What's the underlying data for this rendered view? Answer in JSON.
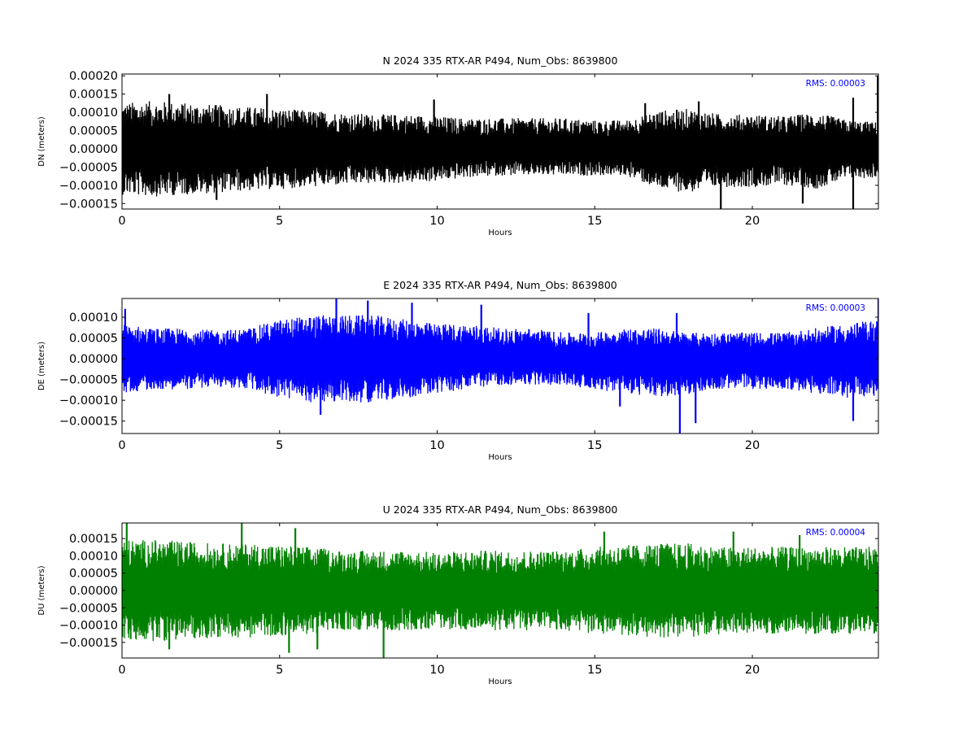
{
  "chart_data": [
    {
      "type": "line",
      "component": "N",
      "title": "N 2024 335 RTX-AR  P494, Num_Obs: 8639800",
      "xlabel": "Hours",
      "ylabel": "DN (meters)",
      "xlim": [
        0,
        24
      ],
      "ylim": [
        -0.000165,
        0.000205
      ],
      "xticks": [
        0,
        5,
        10,
        15,
        20
      ],
      "xtick_labels": [
        "0",
        "5",
        "10",
        "15",
        "20"
      ],
      "yticks": [
        -0.00015,
        -0.0001,
        -5e-05,
        0,
        5e-05,
        0.0001,
        0.00015,
        0.0002
      ],
      "ytick_labels": [
        "−0.00015",
        "−0.00010",
        "−0.00005",
        "0.00000",
        "0.00005",
        "0.00010",
        "0.00015",
        "0.00020"
      ],
      "rms_label": "RMS:  0.00003",
      "color": "#000000",
      "grid": false,
      "envelope": {
        "hours": [
          0,
          1,
          2,
          3,
          4,
          5,
          6,
          7,
          8,
          9,
          10,
          11,
          12,
          13,
          14,
          15,
          16,
          17,
          18,
          19,
          20,
          21,
          22,
          23,
          24
        ],
        "upper": [
          0.00012,
          0.000125,
          0.00012,
          0.000115,
          0.00011,
          0.000105,
          0.0001,
          9.5e-05,
          9e-05,
          9e-05,
          8.5e-05,
          8e-05,
          8e-05,
          8e-05,
          8e-05,
          7.5e-05,
          7.5e-05,
          0.0001,
          0.000105,
          9e-05,
          9e-05,
          8.5e-05,
          9.5e-05,
          7.5e-05,
          7e-05
        ],
        "lower": [
          -0.00012,
          -0.000125,
          -0.00012,
          -0.000115,
          -0.00011,
          -0.000105,
          -0.0001,
          -9.5e-05,
          -9e-05,
          -9e-05,
          -8.5e-05,
          -7.5e-05,
          -7e-05,
          -7e-05,
          -7e-05,
          -7e-05,
          -7e-05,
          -0.000105,
          -0.000115,
          -0.0001,
          -0.0001,
          -9.5e-05,
          -0.000105,
          -8e-05,
          -7.5e-05
        ]
      },
      "spikes": [
        {
          "x": 1.5,
          "y": 0.00015
        },
        {
          "x": 3.0,
          "y": -0.00014
        },
        {
          "x": 4.6,
          "y": 0.00015
        },
        {
          "x": 9.9,
          "y": 0.000135
        },
        {
          "x": 16.6,
          "y": 0.000125
        },
        {
          "x": 18.3,
          "y": 0.00013
        },
        {
          "x": 19.0,
          "y": -0.00017
        },
        {
          "x": 21.6,
          "y": -0.00015
        },
        {
          "x": 23.2,
          "y": 0.00014
        },
        {
          "x": 23.2,
          "y": -0.00017
        },
        {
          "x": 23.98,
          "y": 0.0002
        }
      ]
    },
    {
      "type": "line",
      "component": "E",
      "title": "E 2024 335 RTX-AR  P494, Num_Obs: 8639800",
      "xlabel": "Hours",
      "ylabel": "DE (meters)",
      "xlim": [
        0,
        24
      ],
      "ylim": [
        -0.00018,
        0.000145
      ],
      "xticks": [
        0,
        5,
        10,
        15,
        20
      ],
      "xtick_labels": [
        "0",
        "5",
        "10",
        "15",
        "20"
      ],
      "yticks": [
        -0.00015,
        -0.0001,
        -5e-05,
        0,
        5e-05,
        0.0001
      ],
      "ytick_labels": [
        "−0.00015",
        "−0.00010",
        "−0.00005",
        "0.00000",
        "0.00005",
        "0.00010"
      ],
      "rms_label": "RMS:  0.00003",
      "color": "#0000ff",
      "grid": false,
      "envelope": {
        "hours": [
          0,
          1,
          2,
          3,
          4,
          5,
          6,
          7,
          8,
          9,
          10,
          11,
          12,
          13,
          14,
          15,
          16,
          17,
          18,
          19,
          20,
          21,
          22,
          23,
          24
        ],
        "upper": [
          8e-05,
          7e-05,
          7e-05,
          6.5e-05,
          7e-05,
          9e-05,
          0.0001,
          0.0001,
          0.0001,
          9e-05,
          8e-05,
          8e-05,
          7e-05,
          7e-05,
          6e-05,
          6e-05,
          7e-05,
          7e-05,
          6e-05,
          6e-05,
          6e-05,
          6e-05,
          7e-05,
          8e-05,
          9e-05
        ],
        "lower": [
          -8e-05,
          -7e-05,
          -7e-05,
          -6.5e-05,
          -7e-05,
          -9e-05,
          -0.0001,
          -0.0001,
          -0.0001,
          -9e-05,
          -8e-05,
          -7e-05,
          -6e-05,
          -6e-05,
          -6e-05,
          -7e-05,
          -8e-05,
          -9e-05,
          -8e-05,
          -7e-05,
          -7e-05,
          -7e-05,
          -8e-05,
          -9e-05,
          -9e-05
        ]
      },
      "spikes": [
        {
          "x": 0.1,
          "y": 0.00012
        },
        {
          "x": 6.3,
          "y": -0.000135
        },
        {
          "x": 6.8,
          "y": 0.000145
        },
        {
          "x": 7.8,
          "y": 0.00014
        },
        {
          "x": 9.2,
          "y": 0.000135
        },
        {
          "x": 11.4,
          "y": 0.00013
        },
        {
          "x": 14.8,
          "y": 0.00011
        },
        {
          "x": 15.8,
          "y": -0.000115
        },
        {
          "x": 17.6,
          "y": 0.00011
        },
        {
          "x": 17.7,
          "y": -0.00018
        },
        {
          "x": 18.2,
          "y": -0.000155
        },
        {
          "x": 23.2,
          "y": -0.00015
        },
        {
          "x": 24.0,
          "y": 0.000145
        }
      ]
    },
    {
      "type": "line",
      "component": "U",
      "title": "U 2024 335 RTX-AR  P494, Num_Obs: 8639800",
      "xlabel": "Hours",
      "ylabel": "DU (meters)",
      "xlim": [
        0,
        24
      ],
      "ylim": [
        -0.000195,
        0.000195
      ],
      "xticks": [
        0,
        5,
        10,
        15,
        20
      ],
      "xtick_labels": [
        "0",
        "5",
        "10",
        "15",
        "20"
      ],
      "yticks": [
        -0.00015,
        -0.0001,
        -5e-05,
        0,
        5e-05,
        0.0001,
        0.00015
      ],
      "ytick_labels": [
        "−0.00015",
        "−0.00010",
        "−0.00005",
        "0.00000",
        "0.00005",
        "0.00010",
        "0.00015"
      ],
      "rms_label": "RMS:  0.00004",
      "color": "#008000",
      "grid": false,
      "envelope": {
        "hours": [
          0,
          1,
          2,
          3,
          4,
          5,
          6,
          7,
          8,
          9,
          10,
          11,
          12,
          13,
          14,
          15,
          16,
          17,
          18,
          19,
          20,
          21,
          22,
          23,
          24
        ],
        "upper": [
          0.00014,
          0.00014,
          0.000135,
          0.00013,
          0.00013,
          0.000125,
          0.00012,
          0.00011,
          0.00011,
          0.00011,
          0.000105,
          0.00011,
          0.00011,
          0.00011,
          0.00011,
          0.00012,
          0.000125,
          0.00013,
          0.00013,
          0.00012,
          0.00012,
          0.00012,
          0.00012,
          0.00012,
          0.00012
        ],
        "lower": [
          -0.00014,
          -0.00014,
          -0.000135,
          -0.00013,
          -0.00013,
          -0.000125,
          -0.00012,
          -0.00011,
          -0.00011,
          -0.00011,
          -0.000105,
          -0.00011,
          -0.00011,
          -0.00011,
          -0.00011,
          -0.00012,
          -0.000125,
          -0.00013,
          -0.00013,
          -0.00012,
          -0.00012,
          -0.00012,
          -0.00012,
          -0.00012,
          -0.00012
        ]
      },
      "spikes": [
        {
          "x": 0.15,
          "y": 0.000195
        },
        {
          "x": 1.5,
          "y": -0.00017
        },
        {
          "x": 3.8,
          "y": 0.000195
        },
        {
          "x": 5.5,
          "y": 0.00018
        },
        {
          "x": 5.3,
          "y": -0.00018
        },
        {
          "x": 6.2,
          "y": -0.00017
        },
        {
          "x": 8.3,
          "y": -0.000195
        },
        {
          "x": 15.3,
          "y": 0.00017
        },
        {
          "x": 19.4,
          "y": 0.00017
        },
        {
          "x": 21.5,
          "y": 0.00016
        }
      ]
    }
  ]
}
